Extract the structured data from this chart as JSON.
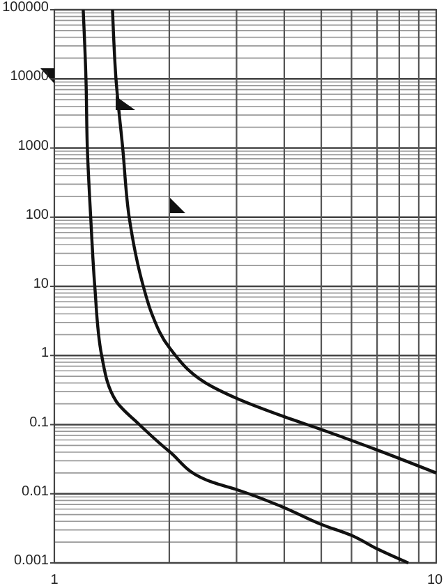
{
  "chart_data": {
    "type": "line",
    "log": "xy",
    "grid": true,
    "marker": "none",
    "line_style": "solid",
    "xlim": [
      1,
      10
    ],
    "xticks": [
      1,
      {
        "value": 2,
        "label": null
      },
      {
        "value": 3,
        "label": null
      },
      {
        "value": 4,
        "label": null
      },
      {
        "value": 5,
        "label": null
      },
      {
        "value": 6,
        "label": null
      },
      {
        "value": 7,
        "label": null
      },
      {
        "value": 8,
        "label": null
      },
      {
        "value": 9,
        "label": null
      },
      10
    ],
    "ylim": [
      0.001,
      100000
    ],
    "yticks": [
      0.001,
      {
        "value": 0.002,
        "label": null
      },
      {
        "value": 0.003,
        "label": null
      },
      {
        "value": 0.004,
        "label": null
      },
      {
        "value": 0.005,
        "label": null
      },
      {
        "value": 0.006,
        "label": null
      },
      {
        "value": 0.007,
        "label": null
      },
      {
        "value": 0.008,
        "label": null
      },
      {
        "value": 0.009,
        "label": null
      },
      0.01,
      {
        "value": 0.02,
        "label": null
      },
      {
        "value": 0.03,
        "label": null
      },
      {
        "value": 0.04,
        "label": null
      },
      {
        "value": 0.05,
        "label": null
      },
      {
        "value": 0.06,
        "label": null
      },
      {
        "value": 0.07,
        "label": null
      },
      {
        "value": 0.08,
        "label": null
      },
      {
        "value": 0.09,
        "label": null
      },
      0.1,
      {
        "value": 0.2,
        "label": null
      },
      {
        "value": 0.3,
        "label": null
      },
      {
        "value": 0.4,
        "label": null
      },
      {
        "value": 0.5,
        "label": null
      },
      {
        "value": 0.6,
        "label": null
      },
      {
        "value": 0.7,
        "label": null
      },
      {
        "value": 0.8,
        "label": null
      },
      {
        "value": 0.9,
        "label": null
      },
      1,
      {
        "value": 2,
        "label": null
      },
      {
        "value": 3,
        "label": null
      },
      {
        "value": 4,
        "label": null
      },
      {
        "value": 5,
        "label": null
      },
      {
        "value": 6,
        "label": null
      },
      {
        "value": 7,
        "label": null
      },
      {
        "value": 8,
        "label": null
      },
      {
        "value": 9,
        "label": null
      },
      10,
      {
        "value": 20,
        "label": null
      },
      {
        "value": 30,
        "label": null
      },
      {
        "value": 40,
        "label": null
      },
      {
        "value": 50,
        "label": null
      },
      {
        "value": 60,
        "label": null
      },
      {
        "value": 70,
        "label": null
      },
      {
        "value": 80,
        "label": null
      },
      {
        "value": 90,
        "label": null
      },
      100,
      {
        "value": 200,
        "label": null
      },
      {
        "value": 300,
        "label": null
      },
      {
        "value": 400,
        "label": null
      },
      {
        "value": 500,
        "label": null
      },
      {
        "value": 600,
        "label": null
      },
      {
        "value": 700,
        "label": null
      },
      {
        "value": 800,
        "label": null
      },
      {
        "value": 900,
        "label": null
      },
      1000,
      {
        "value": 2000,
        "label": null
      },
      {
        "value": 3000,
        "label": null
      },
      {
        "value": 4000,
        "label": null
      },
      {
        "value": 5000,
        "label": null
      },
      {
        "value": 6000,
        "label": null
      },
      {
        "value": 7000,
        "label": null
      },
      {
        "value": 8000,
        "label": null
      },
      {
        "value": 9000,
        "label": null
      },
      10000,
      {
        "value": 20000,
        "label": null
      },
      {
        "value": 30000,
        "label": null
      },
      {
        "value": 40000,
        "label": null
      },
      {
        "value": 50000,
        "label": null
      },
      {
        "value": 60000,
        "label": null
      },
      {
        "value": 70000,
        "label": null
      },
      {
        "value": 80000,
        "label": null
      },
      {
        "value": 90000,
        "label": null
      },
      100000
    ],
    "series": [
      {
        "color": "#111111",
        "x": [
          1.19,
          1.21,
          1.22,
          1.245,
          1.276,
          1.33,
          1.45,
          1.67,
          2,
          2.6,
          3,
          4,
          5,
          6,
          7,
          8.45
        ],
        "values": [
          100000,
          10000,
          1000,
          100,
          10,
          1,
          0.22,
          0.1,
          0.041,
          0.0146,
          0.0115,
          0.0063,
          0.0036,
          0.0025,
          0.0016,
          0.001
        ]
      },
      {
        "color": "#111111",
        "x": [
          1.42,
          1.45,
          1.51,
          1.57,
          1.71,
          1.8,
          2,
          2.6,
          3,
          4,
          5,
          7,
          10
        ],
        "values": [
          100000,
          10000,
          1000,
          100,
          10,
          4,
          1.3,
          0.35,
          0.24,
          0.13,
          0.085,
          0.043,
          0.02
        ]
      }
    ]
  }
}
